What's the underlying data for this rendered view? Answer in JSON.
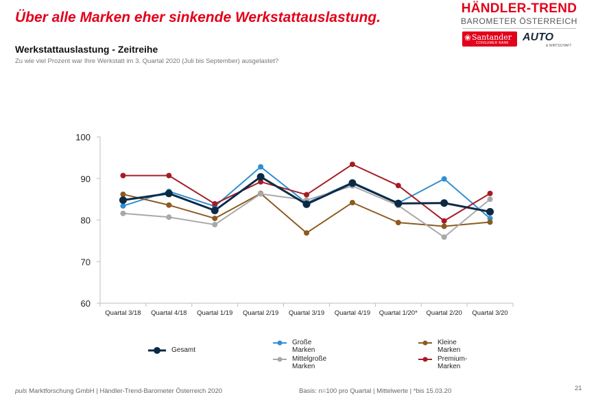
{
  "headline": "Über alle Marken eher sinkende Werkstattauslastung.",
  "brand": {
    "title": "HÄNDLER-TREND",
    "subtitle": "BAROMETER ÖSTERREICH",
    "santander_name": "Santander",
    "santander_small": "CONSUMER BANK",
    "auto_text": "AUTO",
    "auto_sub": "& WIRTSCHAFT"
  },
  "section_title": "Werkstattauslastung - Zeitreihe",
  "question": "Zu wie viel Prozent war Ihre Werkstatt im 3. Quartal 2020 (Juli bis September) ausgelastet?",
  "chart_data": {
    "type": "line",
    "categories": [
      "Quartal 3/18",
      "Quartal 4/18",
      "Quartal 1/19",
      "Quartal 2/19",
      "Quartal 3/19",
      "Quartal 4/19",
      "Quartal 1/20*",
      "Quartal 2/20",
      "Quartal 3/20"
    ],
    "ylim": [
      60,
      100
    ],
    "yticks": [
      60,
      70,
      80,
      90,
      100
    ],
    "grid": false,
    "legend_position": "bottom",
    "series": [
      {
        "name": "Gesamt",
        "color": "#0d2a45",
        "values": [
          84.8,
          86.4,
          82.3,
          90.4,
          83.8,
          88.9,
          84.0,
          84.1,
          82.0
        ]
      },
      {
        "name": "Große Marken",
        "color": "#2f8fd1",
        "values": [
          83.4,
          86.9,
          83.3,
          92.8,
          84.1,
          89.1,
          84.1,
          89.9,
          80.4
        ]
      },
      {
        "name": "Kleine Marken",
        "color": "#8c5a1e",
        "values": [
          86.2,
          83.6,
          80.4,
          86.4,
          76.9,
          84.2,
          79.4,
          78.5,
          79.5
        ]
      },
      {
        "name": "Mittelgroße Marken",
        "color": "#a8a8a8",
        "values": [
          81.6,
          80.7,
          78.9,
          86.3,
          84.8,
          88.2,
          83.5,
          75.9,
          85.0
        ]
      },
      {
        "name": "Premium-Marken",
        "color": "#a51c24",
        "values": [
          90.7,
          90.7,
          83.9,
          89.2,
          86.1,
          93.4,
          88.3,
          79.8,
          86.4
        ]
      }
    ]
  },
  "footer": {
    "puls": "puls",
    "left_rest": " Marktforschung GmbH | Händler-Trend-Barometer Österreich 2020",
    "basis": "Basis: n=100 pro Quartal | Mittelwerte | *bis 15.03.20",
    "page_number": "21"
  }
}
